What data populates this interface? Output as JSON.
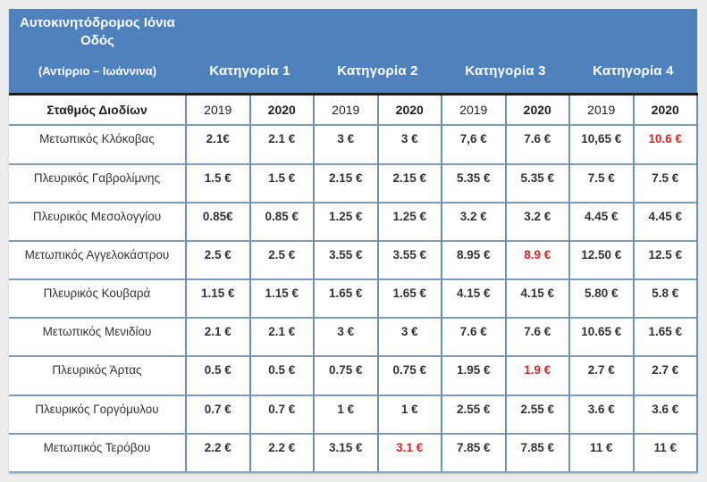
{
  "header": {
    "motorway": "Αυτοκινητόδρομος Ιόνια Οδός",
    "section": "(Αντίρριο – Ιωάννινα)",
    "categories": [
      "Κατηγορία 1",
      "Κατηγορία 2",
      "Κατηγορία 3",
      "Κατηγορία 4"
    ],
    "station_col": "Σταθμός Διοδίων",
    "years": [
      "2019",
      "2020"
    ]
  },
  "colors": {
    "header_blue": "#4f81bd",
    "border_steel": "#6c8fbe",
    "row_line": "#7f9db9",
    "divider_dark": "#1c1c1c",
    "highlight_red": "#d12626"
  },
  "table": {
    "rows": [
      {
        "station": "Μετωπικός Κλόκοβας",
        "values": [
          "2.1€",
          "2.1 €",
          "3 €",
          "3 €",
          "7,6 €",
          "7.6 €",
          "10,65 €",
          "10.6 €"
        ],
        "red": [
          7
        ]
      },
      {
        "station": "Πλευρικός Γαβρολίμνης",
        "values": [
          "1.5 €",
          "1.5 €",
          "2.15 €",
          "2.15 €",
          "5.35 €",
          "5.35 €",
          "7.5 €",
          "7.5 €"
        ],
        "red": []
      },
      {
        "station": "Πλευρικός Μεσολογγίου",
        "values": [
          "0.85€",
          "0.85 €",
          "1.25 €",
          "1.25 €",
          "3.2 €",
          "3.2 €",
          "4.45 €",
          "4.45 €"
        ],
        "red": []
      },
      {
        "station": "Μετωπικός Αγγελοκάστρου",
        "values": [
          "2.5 €",
          "2.5 €",
          "3.55 €",
          "3.55 €",
          "8.95 €",
          "8.9 €",
          "12.50 €",
          "12.5 €"
        ],
        "red": [
          5
        ]
      },
      {
        "station": "Πλευρικός Κουβαρά",
        "values": [
          "1.15 €",
          "1.15 €",
          "1.65 €",
          "1.65 €",
          "4.15 €",
          "4.15 €",
          "5.80 €",
          "5.8 €"
        ],
        "red": []
      },
      {
        "station": "Μετωπικός Μενιδίου",
        "values": [
          "2.1 €",
          "2.1 €",
          "3 €",
          "3 €",
          "7.6 €",
          "7.6 €",
          "10.65 €",
          "1.65 €"
        ],
        "red": []
      },
      {
        "station": "Πλευρικός Άρτας",
        "values": [
          "0.5 €",
          "0.5 €",
          "0.75 €",
          "0.75 €",
          "1.95 €",
          "1.9 €",
          "2.7 €",
          "2.7 €"
        ],
        "red": [
          5
        ]
      },
      {
        "station": "Πλευρικός Γοργόμυλου",
        "values": [
          "0.7 €",
          "0.7 €",
          "1 €",
          "1 €",
          "2.55 €",
          "2.55 €",
          "3.6 €",
          "3.6 €"
        ],
        "red": []
      },
      {
        "station": "Μετωπικός Τερόβου",
        "values": [
          "2.2 €",
          "2.2 €",
          "3.15 €",
          "3.1 €",
          "7.85 €",
          "7.85 €",
          "11 €",
          "11 €"
        ],
        "red": [
          3
        ]
      }
    ]
  }
}
